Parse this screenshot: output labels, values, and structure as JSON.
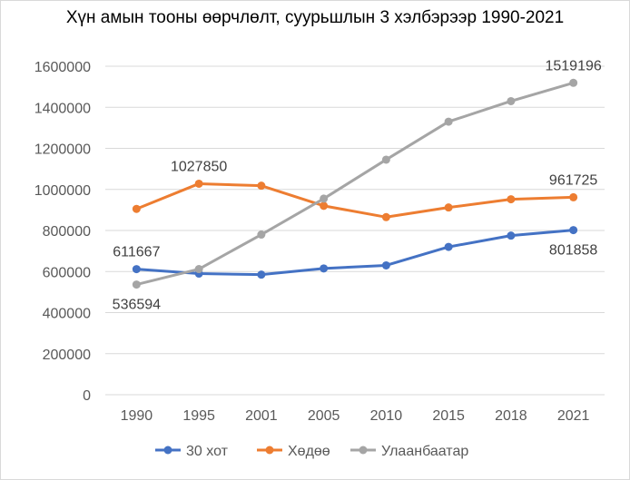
{
  "chart_data": {
    "type": "line",
    "title": "Хүн амын тооны өөрчлөлт, суурьшлын 3 хэлбэрээр 1990-2021",
    "xlabel": "",
    "ylabel": "",
    "categories": [
      "1990",
      "1995",
      "2001",
      "2005",
      "2010",
      "2015",
      "2018",
      "2021"
    ],
    "ylim": [
      0,
      1600000
    ],
    "yticks": [
      0,
      200000,
      400000,
      600000,
      800000,
      1000000,
      1200000,
      1400000,
      1600000
    ],
    "ytick_labels": [
      "0",
      "200000",
      "400000",
      "600000",
      "800000",
      "1000000",
      "1200000",
      "1400000",
      "1600000"
    ],
    "grid": true,
    "legend": "bottom",
    "series": [
      {
        "name": "30 хот",
        "color": "#4472c4",
        "values": [
          611667,
          590000,
          585000,
          615000,
          630000,
          720000,
          775000,
          801858
        ],
        "data_labels": [
          {
            "index": 0,
            "text": "611667",
            "position": "above"
          },
          {
            "index": 7,
            "text": "801858",
            "position": "below"
          }
        ]
      },
      {
        "name": "Хөдөө",
        "color": "#ed7d31",
        "values": [
          905000,
          1027850,
          1018000,
          920000,
          865000,
          912000,
          952000,
          961725
        ],
        "data_labels": [
          {
            "index": 1,
            "text": "1027850",
            "position": "above"
          },
          {
            "index": 7,
            "text": "961725",
            "position": "above"
          }
        ]
      },
      {
        "name": "Улаанбаатар",
        "color": "#a5a5a5",
        "values": [
          536594,
          612000,
          780000,
          955000,
          1145000,
          1330000,
          1430000,
          1519196
        ],
        "data_labels": [
          {
            "index": 0,
            "text": "536594",
            "position": "below"
          },
          {
            "index": 7,
            "text": "1519196",
            "position": "above"
          }
        ]
      }
    ]
  }
}
